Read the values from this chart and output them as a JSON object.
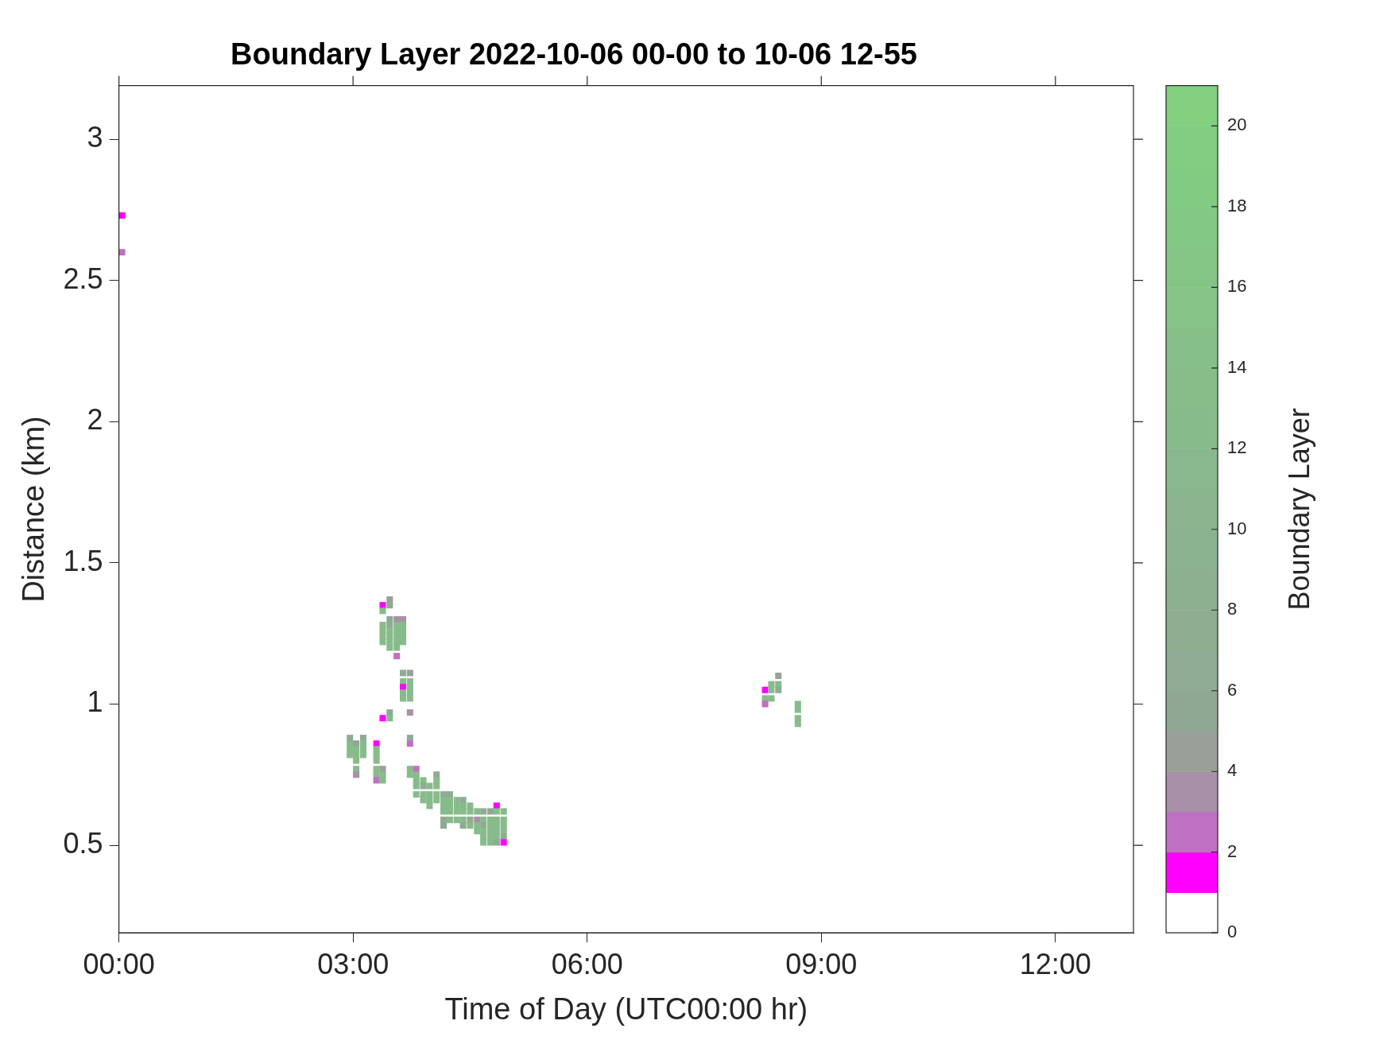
{
  "chart_data": {
    "type": "scatter",
    "title": "Boundary Layer 2022-10-06 00-00 to 10-06 12-55",
    "xlabel": "Time of Day (UTC00:00 hr)",
    "ylabel": "Distance (km)",
    "clabel": "Boundary Layer",
    "xlim": [
      0,
      13
    ],
    "xticks": [
      {
        "value": 0,
        "label": "00:00"
      },
      {
        "value": 3,
        "label": "03:00"
      },
      {
        "value": 6,
        "label": "06:00"
      },
      {
        "value": 9,
        "label": "09:00"
      },
      {
        "value": 12,
        "label": "12:00"
      }
    ],
    "ylim": [
      0.19,
      3.19
    ],
    "yticks": [
      0.5,
      1,
      1.5,
      2,
      2.5,
      3
    ],
    "clim": [
      0,
      21
    ],
    "cticks": [
      0,
      2,
      4,
      6,
      8,
      10,
      12,
      14,
      16,
      18,
      20
    ],
    "marker": "square",
    "grid": false,
    "legend": false,
    "x": [
      0.04,
      0.04,
      3.47,
      3.38,
      3.47,
      3.38,
      3.47,
      3.56,
      3.64,
      3.38,
      3.47,
      3.56,
      3.64,
      3.38,
      3.47,
      3.56,
      3.64,
      3.38,
      3.47,
      3.56,
      3.64,
      3.38,
      3.47,
      3.56,
      3.64,
      3.47,
      3.56,
      3.56,
      3.64,
      3.73,
      3.64,
      3.73,
      3.64,
      3.73,
      3.64,
      3.73,
      3.64,
      3.73,
      3.73,
      3.47,
      3.38,
      3.47,
      2.96,
      3.13,
      3.73,
      2.96,
      3.04,
      3.13,
      3.3,
      3.73,
      2.96,
      3.04,
      3.13,
      3.3,
      2.96,
      3.04,
      3.13,
      3.3,
      3.04,
      3.3,
      3.04,
      3.3,
      3.38,
      3.73,
      3.81,
      3.04,
      3.3,
      3.38,
      3.73,
      3.81,
      4.07,
      3.3,
      3.38,
      3.81,
      3.9,
      4.07,
      3.81,
      3.9,
      3.98,
      4.07,
      3.81,
      3.9,
      3.98,
      4.07,
      4.16,
      4.24,
      3.9,
      3.98,
      4.07,
      4.16,
      4.24,
      4.33,
      4.41,
      3.98,
      4.16,
      4.24,
      4.33,
      4.41,
      4.5,
      4.84,
      4.16,
      4.24,
      4.33,
      4.41,
      4.5,
      4.59,
      4.67,
      4.76,
      4.84,
      4.93,
      4.16,
      4.24,
      4.33,
      4.41,
      4.5,
      4.59,
      4.67,
      4.76,
      4.84,
      4.93,
      4.16,
      4.41,
      4.5,
      4.59,
      4.67,
      4.76,
      4.84,
      4.93,
      4.59,
      4.67,
      4.76,
      4.84,
      4.93,
      4.67,
      4.76,
      4.84,
      4.93,
      4.67,
      4.76,
      4.84,
      4.93,
      8.45,
      8.36,
      8.45,
      8.28,
      8.36,
      8.45,
      8.28,
      8.36,
      8.28,
      8.7,
      8.7,
      8.7,
      8.7
    ],
    "values": [
      2.73,
      2.6,
      1.37,
      1.35,
      1.35,
      1.33,
      1.3,
      1.3,
      1.3,
      1.28,
      1.28,
      1.28,
      1.28,
      1.26,
      1.26,
      1.26,
      1.26,
      1.24,
      1.24,
      1.24,
      1.24,
      1.22,
      1.22,
      1.22,
      1.22,
      1.2,
      1.2,
      1.17,
      1.11,
      1.11,
      1.08,
      1.08,
      1.06,
      1.06,
      1.04,
      1.04,
      1.02,
      1.02,
      0.97,
      0.97,
      0.95,
      0.95,
      0.88,
      0.88,
      0.88,
      0.86,
      0.86,
      0.86,
      0.86,
      0.86,
      0.84,
      0.84,
      0.84,
      0.84,
      0.82,
      0.82,
      0.82,
      0.82,
      0.8,
      0.8,
      0.77,
      0.77,
      0.77,
      0.77,
      0.77,
      0.75,
      0.75,
      0.75,
      0.75,
      0.75,
      0.75,
      0.73,
      0.73,
      0.73,
      0.73,
      0.73,
      0.71,
      0.71,
      0.71,
      0.71,
      0.68,
      0.68,
      0.68,
      0.68,
      0.68,
      0.68,
      0.66,
      0.66,
      0.66,
      0.66,
      0.66,
      0.66,
      0.66,
      0.64,
      0.64,
      0.64,
      0.64,
      0.64,
      0.64,
      0.64,
      0.62,
      0.62,
      0.62,
      0.62,
      0.62,
      0.62,
      0.62,
      0.62,
      0.62,
      0.62,
      0.59,
      0.59,
      0.59,
      0.59,
      0.59,
      0.59,
      0.59,
      0.59,
      0.59,
      0.59,
      0.57,
      0.57,
      0.57,
      0.57,
      0.57,
      0.57,
      0.57,
      0.57,
      0.55,
      0.55,
      0.55,
      0.55,
      0.55,
      0.53,
      0.53,
      0.53,
      0.53,
      0.51,
      0.51,
      0.51,
      0.51,
      1.1,
      1.07,
      1.07,
      1.05,
      1.05,
      1.05,
      1.02,
      1.02,
      1.0,
      1.0,
      0.98,
      0.95,
      0.93
    ],
    "cvalues": [
      1,
      2,
      4,
      1,
      6,
      12,
      6,
      3,
      3,
      12,
      6,
      12,
      12,
      12,
      12,
      12,
      12,
      12,
      12,
      12,
      12,
      12,
      12,
      12,
      12,
      12,
      12,
      2,
      7,
      4,
      12,
      12,
      1,
      12,
      12,
      12,
      12,
      12,
      3,
      6,
      1,
      12,
      6,
      6,
      6,
      12,
      4,
      12,
      1,
      2,
      12,
      12,
      12,
      12,
      12,
      12,
      12,
      12,
      12,
      12,
      12,
      12,
      4,
      12,
      2,
      3,
      12,
      12,
      12,
      12,
      6,
      2,
      12,
      12,
      12,
      12,
      12,
      6,
      12,
      12,
      12,
      12,
      12,
      12,
      6,
      6,
      12,
      12,
      12,
      12,
      12,
      12,
      6,
      12,
      12,
      12,
      12,
      12,
      12,
      1,
      12,
      12,
      12,
      12,
      12,
      12,
      7,
      6,
      12,
      12,
      6,
      12,
      12,
      12,
      6,
      3,
      12,
      12,
      12,
      12,
      6,
      6,
      12,
      12,
      6,
      12,
      12,
      12,
      12,
      12,
      12,
      12,
      12,
      12,
      12,
      12,
      7,
      12,
      12,
      6,
      1,
      4,
      12,
      12,
      1,
      12,
      6,
      12,
      12,
      2,
      12,
      12,
      12,
      12
    ]
  }
}
